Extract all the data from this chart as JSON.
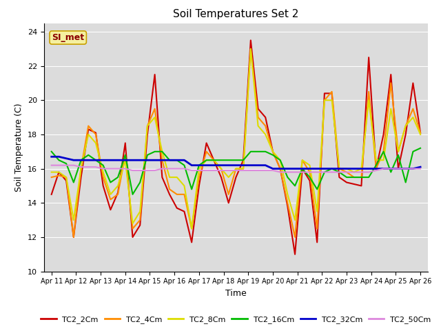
{
  "title": "Soil Temperatures Set 2",
  "xlabel": "Time",
  "ylabel": "Soil Temperature (C)",
  "ylim": [
    10,
    24.5
  ],
  "bg_color": "#dcdcdc",
  "annotation_text": "SI_met",
  "annotation_bg": "#f5f0a0",
  "annotation_border": "#c8a000",
  "annotation_text_color": "#8b0000",
  "x_tick_labels": [
    "Apr 11",
    "Apr 12",
    "Apr 13",
    "Apr 14",
    "Apr 15",
    "Apr 16",
    "Apr 17",
    "Apr 18",
    "Apr 19",
    "Apr 20",
    "Apr 21",
    "Apr 22",
    "Apr 23",
    "Apr 24",
    "Apr 25",
    "Apr 26"
  ],
  "series_names": [
    "TC2_2Cm",
    "TC2_4Cm",
    "TC2_8Cm",
    "TC2_16Cm",
    "TC2_32Cm",
    "TC2_50Cm"
  ],
  "series_colors": [
    "#cc0000",
    "#ff8c00",
    "#dddd00",
    "#00bb00",
    "#0000cc",
    "#dd88dd"
  ],
  "series_lw": [
    1.5,
    1.5,
    1.5,
    1.5,
    2.0,
    1.5
  ],
  "TC2_2Cm": [
    14.5,
    15.8,
    15.3,
    12.0,
    15.5,
    18.3,
    18.1,
    15.0,
    13.6,
    14.6,
    17.5,
    12.0,
    12.7,
    18.0,
    21.5,
    15.5,
    14.5,
    13.7,
    13.5,
    11.7,
    15.0,
    17.5,
    16.5,
    15.5,
    14.0,
    15.5,
    16.5,
    23.5,
    19.5,
    19.0,
    17.0,
    16.0,
    13.8,
    11.0,
    16.0,
    15.3,
    11.7,
    20.4,
    20.4,
    15.5,
    15.2,
    15.1,
    15.0,
    22.5,
    16.0,
    18.0,
    21.5,
    16.0,
    18.0,
    21.0,
    18.1
  ],
  "TC2_4Cm": [
    15.5,
    15.6,
    15.5,
    12.0,
    16.0,
    18.5,
    18.0,
    15.5,
    14.2,
    14.5,
    16.8,
    12.5,
    13.0,
    18.5,
    19.5,
    16.5,
    14.8,
    14.5,
    14.5,
    12.5,
    15.5,
    17.0,
    16.5,
    16.0,
    14.5,
    16.0,
    16.0,
    23.0,
    19.0,
    18.5,
    17.0,
    16.0,
    14.0,
    12.0,
    16.5,
    15.8,
    12.5,
    20.0,
    20.5,
    16.0,
    15.8,
    15.5,
    15.5,
    20.5,
    16.0,
    17.0,
    21.0,
    17.0,
    18.5,
    19.5,
    18.1
  ],
  "TC2_8Cm": [
    15.8,
    15.8,
    15.5,
    13.0,
    16.0,
    18.0,
    17.5,
    15.8,
    14.5,
    15.0,
    16.5,
    12.8,
    13.5,
    18.5,
    19.0,
    17.0,
    15.5,
    15.5,
    15.0,
    12.5,
    16.0,
    16.5,
    16.5,
    16.0,
    15.5,
    16.0,
    16.0,
    23.0,
    18.5,
    18.0,
    17.0,
    16.5,
    14.5,
    13.0,
    16.5,
    16.2,
    13.5,
    20.0,
    20.0,
    16.0,
    16.0,
    15.8,
    16.0,
    20.0,
    16.5,
    16.5,
    19.5,
    17.0,
    18.5,
    19.0,
    18.0
  ],
  "TC2_16Cm": [
    17.0,
    16.5,
    16.3,
    15.2,
    16.5,
    16.8,
    16.5,
    16.2,
    15.2,
    15.5,
    16.8,
    14.5,
    15.2,
    16.8,
    17.0,
    17.0,
    16.5,
    16.5,
    16.2,
    14.8,
    16.2,
    16.5,
    16.5,
    16.5,
    16.5,
    16.5,
    16.5,
    17.0,
    17.0,
    17.0,
    16.8,
    16.5,
    15.5,
    15.0,
    16.0,
    15.5,
    14.8,
    15.8,
    16.0,
    15.8,
    15.5,
    15.5,
    15.5,
    15.5,
    16.2,
    17.0,
    15.8,
    16.8,
    15.2,
    17.0,
    17.2
  ],
  "TC2_32Cm": [
    16.7,
    16.7,
    16.6,
    16.5,
    16.5,
    16.5,
    16.5,
    16.5,
    16.5,
    16.5,
    16.5,
    16.5,
    16.5,
    16.5,
    16.5,
    16.5,
    16.5,
    16.5,
    16.5,
    16.2,
    16.2,
    16.2,
    16.2,
    16.2,
    16.2,
    16.2,
    16.2,
    16.2,
    16.2,
    16.2,
    16.0,
    16.0,
    16.0,
    16.0,
    16.0,
    16.0,
    16.0,
    16.0,
    16.0,
    16.0,
    16.0,
    16.0,
    16.0,
    16.0,
    16.0,
    16.0,
    16.0,
    16.0,
    16.0,
    16.0,
    16.1
  ],
  "TC2_50Cm": [
    16.2,
    16.2,
    16.2,
    16.2,
    16.1,
    16.1,
    16.1,
    16.0,
    16.0,
    16.0,
    16.0,
    15.9,
    15.9,
    15.9,
    15.9,
    16.0,
    16.0,
    16.0,
    16.0,
    15.9,
    15.9,
    15.9,
    15.9,
    15.9,
    15.9,
    15.9,
    15.9,
    15.9,
    15.9,
    15.9,
    15.9,
    15.8,
    15.8,
    15.8,
    15.8,
    15.8,
    15.8,
    15.8,
    15.8,
    15.8,
    15.8,
    15.8,
    15.8,
    15.8,
    15.9,
    16.0,
    16.0,
    16.0,
    16.0,
    16.0,
    16.0
  ]
}
